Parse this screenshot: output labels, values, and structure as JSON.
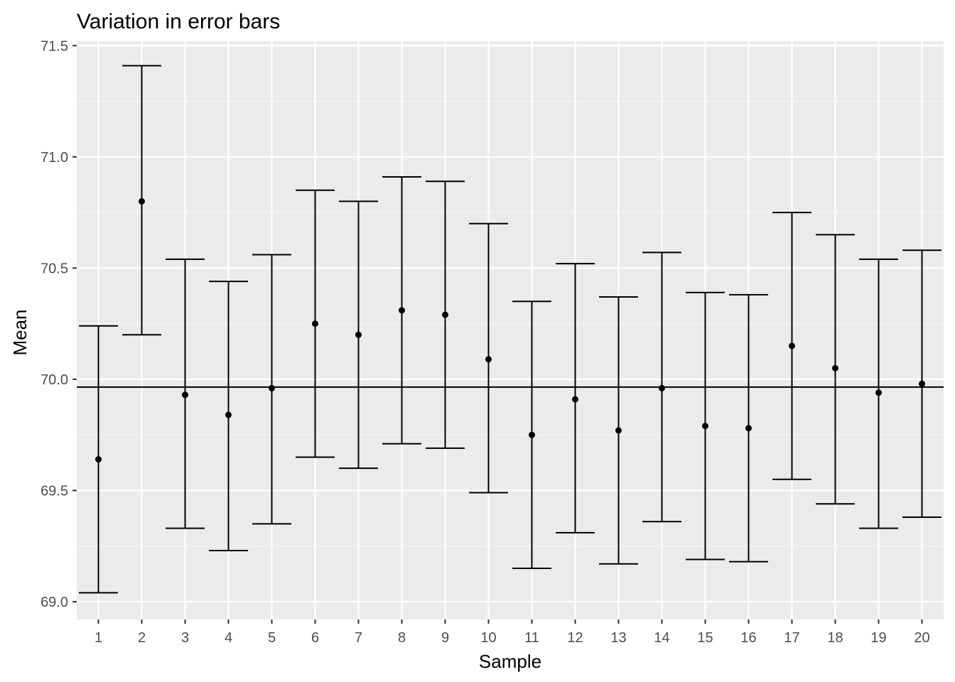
{
  "chart_data": {
    "type": "scatter",
    "title": "Variation in error bars",
    "xlabel": "Sample",
    "ylabel": "Mean",
    "x_categories": [
      "1",
      "2",
      "3",
      "4",
      "5",
      "6",
      "7",
      "8",
      "9",
      "10",
      "11",
      "12",
      "13",
      "14",
      "15",
      "16",
      "17",
      "18",
      "19",
      "20"
    ],
    "ylim": [
      68.92,
      71.52
    ],
    "y_ticks": [
      69.0,
      69.5,
      70.0,
      70.5,
      71.0,
      71.5
    ],
    "y_tick_labels": [
      "69.0",
      "69.5",
      "70.0",
      "70.5",
      "71.0",
      "71.5"
    ],
    "reference_line": 69.965,
    "grid": true,
    "legend": "none",
    "series": [
      {
        "points": [
          {
            "x": "1",
            "mean": 69.64,
            "lower": 69.04,
            "upper": 70.24
          },
          {
            "x": "2",
            "mean": 70.8,
            "lower": 70.2,
            "upper": 71.41
          },
          {
            "x": "3",
            "mean": 69.93,
            "lower": 69.33,
            "upper": 70.54
          },
          {
            "x": "4",
            "mean": 69.84,
            "lower": 69.23,
            "upper": 70.44
          },
          {
            "x": "5",
            "mean": 69.96,
            "lower": 69.35,
            "upper": 70.56
          },
          {
            "x": "6",
            "mean": 70.25,
            "lower": 69.65,
            "upper": 70.85
          },
          {
            "x": "7",
            "mean": 70.2,
            "lower": 69.6,
            "upper": 70.8
          },
          {
            "x": "8",
            "mean": 70.31,
            "lower": 69.71,
            "upper": 70.91
          },
          {
            "x": "9",
            "mean": 70.29,
            "lower": 69.69,
            "upper": 70.89
          },
          {
            "x": "10",
            "mean": 70.09,
            "lower": 69.49,
            "upper": 70.7
          },
          {
            "x": "11",
            "mean": 69.75,
            "lower": 69.15,
            "upper": 70.35
          },
          {
            "x": "12",
            "mean": 69.91,
            "lower": 69.31,
            "upper": 70.52
          },
          {
            "x": "13",
            "mean": 69.77,
            "lower": 69.17,
            "upper": 70.37
          },
          {
            "x": "14",
            "mean": 69.96,
            "lower": 69.36,
            "upper": 70.57
          },
          {
            "x": "15",
            "mean": 69.79,
            "lower": 69.19,
            "upper": 70.39
          },
          {
            "x": "16",
            "mean": 69.78,
            "lower": 69.18,
            "upper": 70.38
          },
          {
            "x": "17",
            "mean": 70.15,
            "lower": 69.55,
            "upper": 70.75
          },
          {
            "x": "18",
            "mean": 70.05,
            "lower": 69.44,
            "upper": 70.65
          },
          {
            "x": "19",
            "mean": 69.94,
            "lower": 69.33,
            "upper": 70.54
          },
          {
            "x": "20",
            "mean": 69.98,
            "lower": 69.38,
            "upper": 70.58
          }
        ]
      }
    ]
  },
  "colors": {
    "panel_background": "#ebebeb",
    "grid_major": "#ffffff",
    "grid_minor": "#f5f5f5",
    "marks": "#000000",
    "tick_text": "#4d4d4d",
    "tick_mark": "#333333"
  }
}
